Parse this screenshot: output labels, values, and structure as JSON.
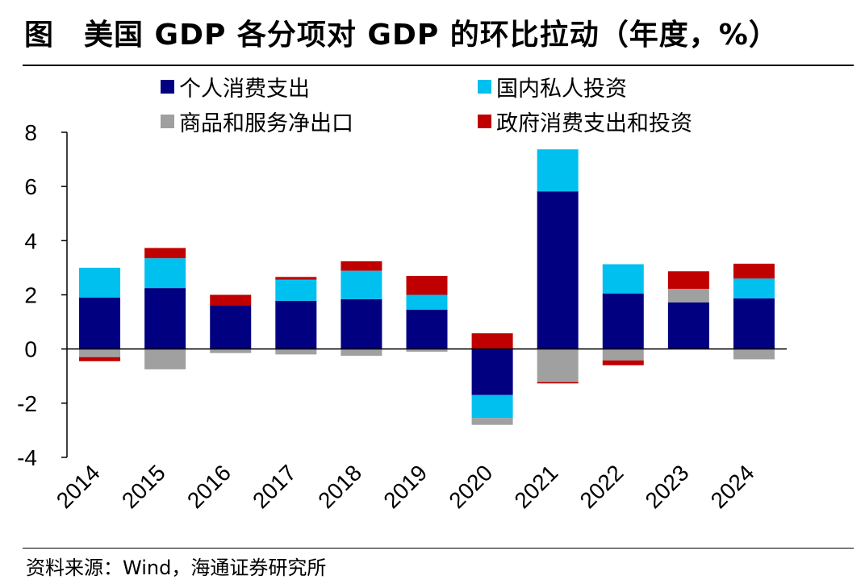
{
  "header": {
    "title": "图　美国 GDP 各分项对 GDP 的环比拉动（年度，%）"
  },
  "footer": {
    "source": "资料来源：Wind，海通证券研究所"
  },
  "colors": {
    "consumption": "#000080",
    "private_investment": "#00C0F0",
    "net_exports": "#A0A0A0",
    "government": "#C00000"
  },
  "chart_data": {
    "type": "bar",
    "stacked": true,
    "title": "美国 GDP 各分项对 GDP 的环比拉动（年度，%）",
    "xlabel": "",
    "ylabel": "",
    "ylim": [
      -4,
      8
    ],
    "yticks": [
      8,
      6,
      4,
      2,
      0,
      -2,
      -4
    ],
    "legend_position": "top",
    "grid": false,
    "categories": [
      "2014",
      "2015",
      "2016",
      "2017",
      "2018",
      "2019",
      "2020",
      "2021",
      "2022",
      "2023",
      "2024"
    ],
    "series": [
      {
        "name": "个人消费支出",
        "color": "#000080",
        "values": [
          1.9,
          2.25,
          1.62,
          1.78,
          1.84,
          1.45,
          -1.7,
          5.82,
          2.05,
          1.72,
          1.87
        ]
      },
      {
        "name": "国内私人投资",
        "color": "#00C0F0",
        "values": [
          1.1,
          1.1,
          0.0,
          0.78,
          1.05,
          0.55,
          -0.85,
          1.55,
          1.08,
          0.0,
          0.73
        ]
      },
      {
        "name": "商品和服务净出口",
        "color": "#A0A0A0",
        "values": [
          -0.3,
          -0.75,
          -0.15,
          -0.2,
          -0.25,
          -0.1,
          -0.25,
          -1.22,
          -0.42,
          0.5,
          -0.38
        ]
      },
      {
        "name": "政府消费支出和投资",
        "color": "#C00000",
        "values": [
          -0.15,
          0.38,
          0.38,
          0.1,
          0.35,
          0.7,
          0.58,
          -0.05,
          -0.18,
          0.65,
          0.55
        ]
      }
    ]
  }
}
